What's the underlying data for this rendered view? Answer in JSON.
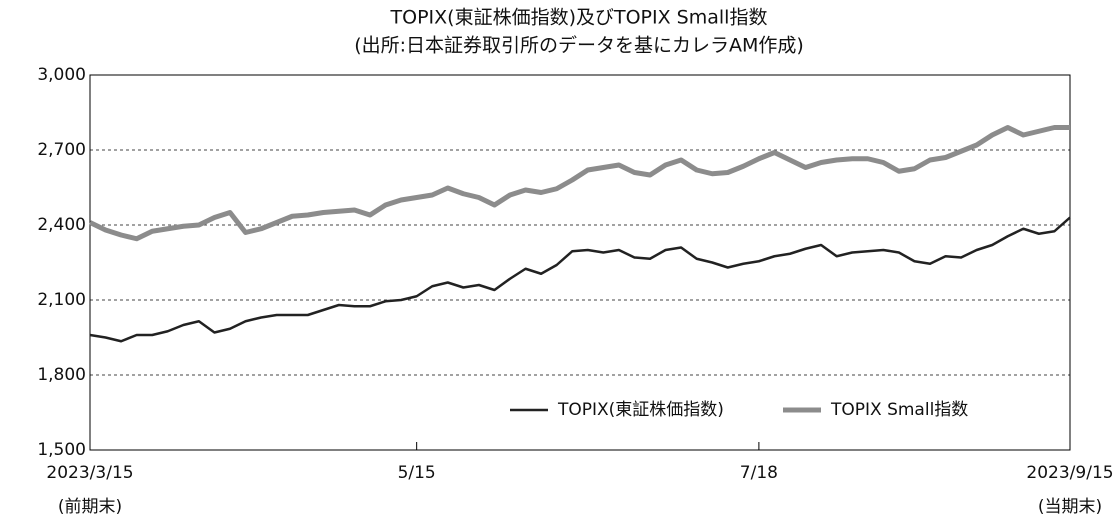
{
  "chart_data": {
    "type": "line",
    "title": "TOPIX(東証株価指数)及びTOPIX Small指数",
    "subtitle": "(出所:日本証券取引所のデータを基にカレラAM作成)",
    "ylim": [
      1500,
      3000
    ],
    "yticks": [
      {
        "value": 1500,
        "label": "1,500"
      },
      {
        "value": 1800,
        "label": "1,800"
      },
      {
        "value": 2100,
        "label": "2,100"
      },
      {
        "value": 2400,
        "label": "2,400"
      },
      {
        "value": 2700,
        "label": "2,700"
      },
      {
        "value": 3000,
        "label": "3,000"
      }
    ],
    "xlim": [
      0,
      63
    ],
    "xticks": [
      {
        "value": 0,
        "label": "2023/3/15\n(前期末)"
      },
      {
        "value": 21,
        "label": "5/15"
      },
      {
        "value": 43,
        "label": "7/18"
      },
      {
        "value": 63,
        "label": "2023/9/15\n(当期末)"
      }
    ],
    "grid": true,
    "legend": "lower right",
    "series": [
      {
        "name": "TOPIX(東証株価指数)",
        "color": "#222222",
        "values": [
          1960,
          1950,
          1935,
          1960,
          1960,
          1975,
          2000,
          2015,
          1970,
          1985,
          2015,
          2030,
          2040,
          2040,
          2040,
          2060,
          2080,
          2075,
          2075,
          2095,
          2100,
          2115,
          2155,
          2170,
          2150,
          2160,
          2140,
          2185,
          2225,
          2205,
          2240,
          2295,
          2300,
          2290,
          2300,
          2270,
          2265,
          2300,
          2310,
          2265,
          2250,
          2230,
          2245,
          2255,
          2275,
          2285,
          2305,
          2320,
          2275,
          2290,
          2295,
          2300,
          2290,
          2255,
          2245,
          2275,
          2270,
          2300,
          2320,
          2355,
          2385,
          2365,
          2375,
          2430
        ]
      },
      {
        "name": "TOPIX Small指数",
        "color": "#8c8c8c",
        "values": [
          2410,
          2380,
          2360,
          2345,
          2375,
          2385,
          2395,
          2400,
          2430,
          2450,
          2370,
          2385,
          2410,
          2435,
          2440,
          2450,
          2455,
          2460,
          2440,
          2480,
          2500,
          2510,
          2520,
          2548,
          2525,
          2510,
          2480,
          2520,
          2540,
          2530,
          2545,
          2580,
          2620,
          2630,
          2640,
          2610,
          2600,
          2640,
          2660,
          2620,
          2605,
          2610,
          2635,
          2665,
          2690,
          2660,
          2630,
          2650,
          2660,
          2665,
          2665,
          2650,
          2615,
          2625,
          2660,
          2670,
          2695,
          2720,
          2760,
          2790,
          2760,
          2775,
          2790,
          2790
        ]
      }
    ]
  }
}
